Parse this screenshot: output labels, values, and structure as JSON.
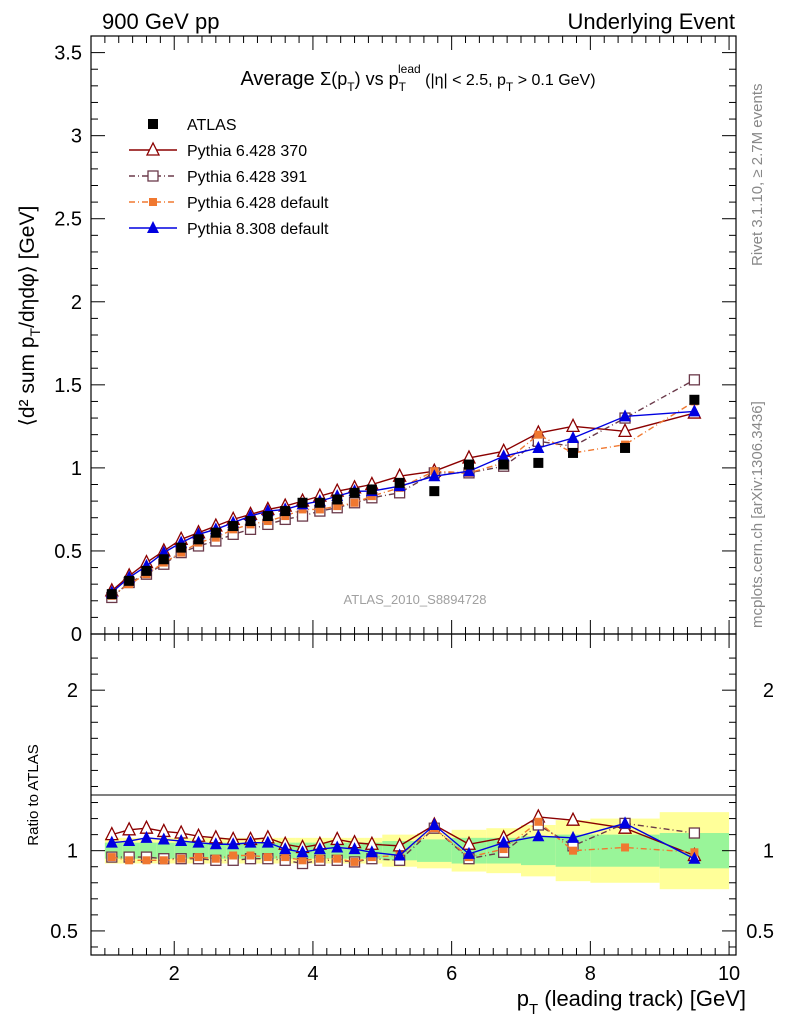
{
  "header": {
    "left": "900 GeV pp",
    "right": "Underlying Event",
    "title_prefix": "Average ",
    "title_sum": "Σ(p",
    "title_sum_sub": "T",
    "title_mid": ") vs p",
    "title_mid_sub": "T",
    "title_mid_sup": "lead",
    "title_cuts": " (|η| < 2.5, p",
    "title_cuts_sub": "T",
    "title_tail": " > 0.1 GeV)",
    "watermark": "ATLAS_2010_S8894728"
  },
  "side": {
    "rivet": "Rivet 3.1.10, ≥ 2.7M events",
    "mcplots": "mcplots.cern.ch [arXiv:1306.3436]"
  },
  "axes": {
    "ylabel_main": "⟨d² sum p",
    "ylabel_main_sub": "T",
    "ylabel_main_tail": "/dηdφ⟩ [GeV]",
    "ylabel_ratio": "Ratio to ATLAS",
    "xlabel": "p",
    "xlabel_sub": "T",
    "xlabel_tail": " (leading track) [GeV]"
  },
  "colors": {
    "atlas": "#000000",
    "p370": "#8b0000",
    "p391": "#6b3a4a",
    "p6def": "#f07830",
    "p8def": "#0000e0",
    "band_inner": "#99f599",
    "band_outer": "#ffff99"
  },
  "chart_data": {
    "type": "line",
    "x": [
      1.1,
      1.35,
      1.6,
      1.85,
      2.1,
      2.35,
      2.6,
      2.85,
      3.1,
      3.35,
      3.6,
      3.85,
      4.1,
      4.35,
      4.6,
      4.85,
      5.25,
      5.75,
      6.25,
      6.75,
      7.25,
      7.75,
      8.5,
      9.5
    ],
    "xlim": [
      0.8,
      10.1
    ],
    "xticks": [
      2,
      4,
      6,
      8,
      10
    ],
    "main": {
      "ylim": [
        0,
        3.6
      ],
      "yticks": [
        "0",
        "0.5",
        "1",
        "1.5",
        "2",
        "2.5",
        "3",
        "3.5"
      ],
      "series": [
        {
          "name": "ATLAS",
          "key": "atlas",
          "marker": "square-filled",
          "values": [
            0.24,
            0.32,
            0.38,
            0.45,
            0.52,
            0.57,
            0.61,
            0.65,
            0.68,
            0.71,
            0.74,
            0.79,
            0.79,
            0.81,
            0.85,
            0.87,
            0.91,
            0.86,
            1.02,
            1.02,
            1.03,
            1.09,
            1.12,
            1.41
          ]
        },
        {
          "name": "Pythia 6.428 370",
          "key": "p370",
          "marker": "triangle-open",
          "dash": "",
          "values": [
            0.26,
            0.35,
            0.43,
            0.5,
            0.57,
            0.61,
            0.65,
            0.69,
            0.72,
            0.75,
            0.77,
            0.8,
            0.83,
            0.86,
            0.88,
            0.9,
            0.95,
            0.98,
            1.06,
            1.1,
            1.21,
            1.25,
            1.22,
            1.33
          ]
        },
        {
          "name": "Pythia 6.428 391",
          "key": "p391",
          "marker": "square-open",
          "dash": "6,3,1,3",
          "values": [
            0.22,
            0.31,
            0.36,
            0.42,
            0.49,
            0.53,
            0.56,
            0.6,
            0.63,
            0.66,
            0.69,
            0.71,
            0.74,
            0.76,
            0.79,
            0.82,
            0.85,
            0.97,
            0.97,
            1.01,
            1.16,
            1.13,
            1.3,
            1.53
          ]
        },
        {
          "name": "Pythia 6.428 default",
          "key": "p6def",
          "marker": "square-filled-small",
          "dash": "6,3,1,3",
          "values": [
            0.23,
            0.3,
            0.36,
            0.43,
            0.49,
            0.55,
            0.58,
            0.63,
            0.66,
            0.68,
            0.71,
            0.75,
            0.75,
            0.77,
            0.79,
            0.83,
            0.88,
            0.98,
            0.97,
            1.03,
            1.2,
            1.09,
            1.14,
            1.4
          ]
        },
        {
          "name": "Pythia 8.308 default",
          "key": "p8def",
          "marker": "triangle-filled",
          "dash": "",
          "values": [
            0.25,
            0.34,
            0.41,
            0.49,
            0.55,
            0.6,
            0.63,
            0.67,
            0.71,
            0.74,
            0.75,
            0.78,
            0.8,
            0.83,
            0.86,
            0.86,
            0.89,
            0.95,
            0.98,
            1.07,
            1.12,
            1.18,
            1.31,
            1.34
          ]
        }
      ]
    },
    "ratio": {
      "ylim": [
        0.35,
        2.35
      ],
      "yticks": [
        "0.5",
        "1",
        "2"
      ],
      "band_edges": [
        1.0,
        1.25,
        1.5,
        1.75,
        2.0,
        2.25,
        2.5,
        2.75,
        3.0,
        3.25,
        3.5,
        3.75,
        4.0,
        4.25,
        4.5,
        4.75,
        5.0,
        5.5,
        6.0,
        6.5,
        7.0,
        7.5,
        8.0,
        9.0,
        10.0
      ],
      "band_inner": [
        0.05,
        0.05,
        0.05,
        0.05,
        0.05,
        0.05,
        0.05,
        0.05,
        0.05,
        0.05,
        0.05,
        0.05,
        0.05,
        0.05,
        0.05,
        0.05,
        0.06,
        0.07,
        0.08,
        0.08,
        0.09,
        0.1,
        0.1,
        0.11
      ],
      "band_outer": [
        0.08,
        0.08,
        0.08,
        0.08,
        0.08,
        0.08,
        0.08,
        0.08,
        0.08,
        0.08,
        0.08,
        0.08,
        0.08,
        0.08,
        0.08,
        0.08,
        0.1,
        0.11,
        0.13,
        0.14,
        0.16,
        0.19,
        0.2,
        0.24
      ],
      "series": [
        {
          "name": "Pythia 6.428 370",
          "key": "p370",
          "marker": "triangle-open",
          "dash": "",
          "values": [
            1.1,
            1.13,
            1.14,
            1.12,
            1.11,
            1.09,
            1.08,
            1.07,
            1.07,
            1.08,
            1.04,
            1.02,
            1.04,
            1.07,
            1.05,
            1.04,
            1.03,
            1.16,
            1.04,
            1.08,
            1.21,
            1.19,
            1.14,
            0.97
          ]
        },
        {
          "name": "Pythia 6.428 391",
          "key": "p391",
          "marker": "square-open",
          "dash": "6,3,1,3",
          "values": [
            0.96,
            0.96,
            0.96,
            0.95,
            0.95,
            0.95,
            0.94,
            0.94,
            0.95,
            0.95,
            0.94,
            0.92,
            0.94,
            0.94,
            0.93,
            0.95,
            0.94,
            1.14,
            0.95,
            0.99,
            1.16,
            1.03,
            1.17,
            1.11
          ]
        },
        {
          "name": "Pythia 6.428 default",
          "key": "p6def",
          "marker": "square-filled-small",
          "dash": "6,3,1,3",
          "values": [
            0.96,
            0.94,
            0.94,
            0.94,
            0.95,
            0.96,
            0.95,
            0.97,
            0.97,
            0.96,
            0.96,
            0.94,
            0.95,
            0.95,
            0.93,
            0.96,
            0.97,
            1.14,
            0.96,
            1.01,
            1.18,
            1.0,
            1.02,
            0.99
          ]
        },
        {
          "name": "Pythia 8.308 default",
          "key": "p8def",
          "marker": "triangle-filled",
          "dash": "",
          "values": [
            1.05,
            1.06,
            1.08,
            1.07,
            1.06,
            1.05,
            1.04,
            1.04,
            1.05,
            1.05,
            1.01,
            0.99,
            1.01,
            1.02,
            1.01,
            0.99,
            0.97,
            1.16,
            0.98,
            1.05,
            1.09,
            1.08,
            1.17,
            0.95
          ]
        }
      ]
    }
  }
}
